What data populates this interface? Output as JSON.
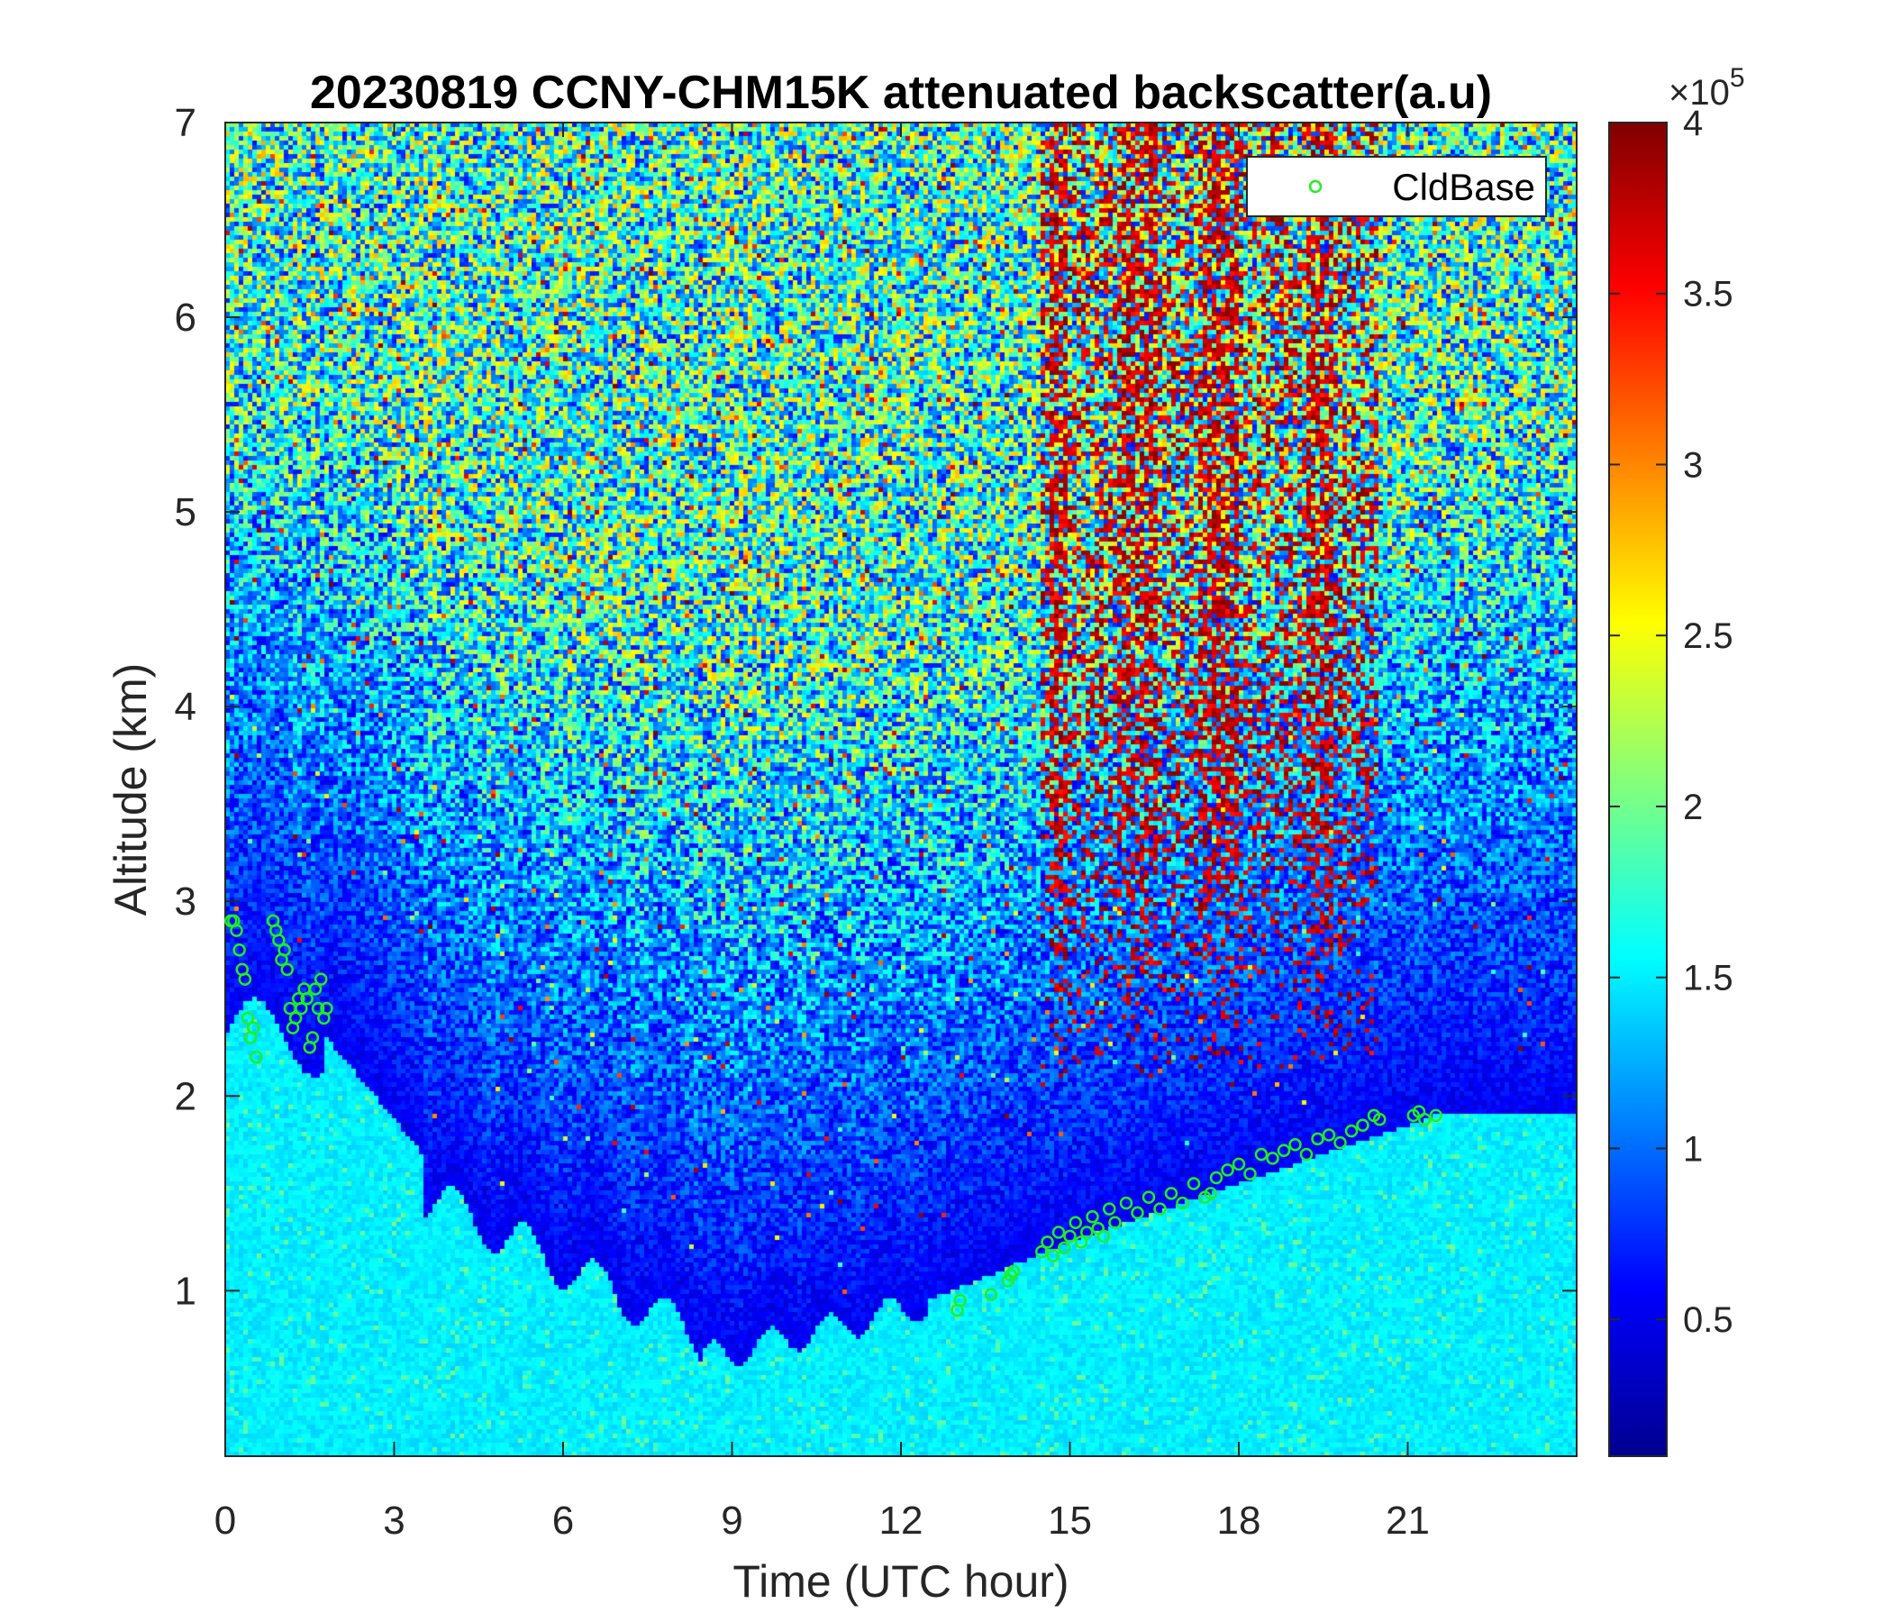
{
  "chart_data": {
    "type": "heatmap",
    "title": "20230819 CCNY-CHM15K attenuated backscatter(a.u)",
    "xlabel": "Time (UTC hour)",
    "ylabel": "Altitude (km)",
    "xlim": [
      0,
      24
    ],
    "ylim": [
      0.15,
      7
    ],
    "xticks": [
      0,
      3,
      6,
      9,
      12,
      15,
      18,
      21
    ],
    "yticks": [
      1,
      2,
      3,
      4,
      5,
      6,
      7
    ],
    "colorbar": {
      "colormap": "jet",
      "clim": [
        10000,
        400000
      ],
      "multiplier_base": "×10",
      "multiplier_exp": "5",
      "ticks": [
        0.5,
        1,
        1.5,
        2,
        2.5,
        3,
        3.5,
        4
      ],
      "tick_labels": [
        "0.5",
        "1",
        "1.5",
        "2",
        "2.5",
        "3",
        "3.5",
        "4"
      ]
    },
    "legend": {
      "position": "top-right",
      "entries": [
        "CldBase"
      ]
    },
    "series": [
      {
        "name": "CldBase",
        "marker": "circle",
        "color": "#22ee22",
        "x": [
          0.1,
          0.15,
          0.2,
          0.25,
          0.3,
          0.35,
          0.4,
          0.45,
          0.5,
          0.55,
          0.85,
          0.9,
          0.95,
          1.0,
          1.05,
          1.1,
          1.15,
          1.2,
          1.25,
          1.3,
          1.35,
          1.4,
          1.45,
          1.5,
          1.55,
          1.6,
          1.65,
          1.7,
          1.75,
          1.8,
          13.0,
          13.05,
          13.6,
          13.9,
          13.95,
          14.0,
          14.5,
          14.6,
          14.7,
          14.8,
          14.9,
          15.0,
          15.1,
          15.2,
          15.3,
          15.4,
          15.5,
          15.6,
          15.7,
          15.8,
          16.0,
          16.2,
          16.4,
          16.6,
          16.8,
          17.0,
          17.2,
          17.4,
          17.5,
          17.6,
          17.8,
          18.0,
          18.2,
          18.4,
          18.6,
          18.8,
          19.0,
          19.2,
          19.4,
          19.6,
          19.8,
          20.0,
          20.2,
          20.4,
          20.5,
          21.1,
          21.2,
          21.3,
          21.5
        ],
        "y": [
          2.9,
          2.9,
          2.85,
          2.75,
          2.65,
          2.6,
          2.4,
          2.3,
          2.35,
          2.2,
          2.9,
          2.85,
          2.8,
          2.7,
          2.75,
          2.65,
          2.45,
          2.35,
          2.4,
          2.5,
          2.45,
          2.55,
          2.5,
          2.25,
          2.3,
          2.55,
          2.45,
          2.6,
          2.4,
          2.45,
          0.9,
          0.95,
          0.98,
          1.05,
          1.08,
          1.1,
          1.2,
          1.25,
          1.18,
          1.3,
          1.22,
          1.28,
          1.35,
          1.25,
          1.3,
          1.38,
          1.32,
          1.28,
          1.42,
          1.35,
          1.45,
          1.4,
          1.48,
          1.42,
          1.5,
          1.45,
          1.55,
          1.48,
          1.5,
          1.58,
          1.62,
          1.65,
          1.6,
          1.7,
          1.68,
          1.72,
          1.75,
          1.7,
          1.78,
          1.8,
          1.76,
          1.82,
          1.85,
          1.9,
          1.88,
          1.9,
          1.92,
          1.88,
          1.9
        ]
      }
    ]
  }
}
